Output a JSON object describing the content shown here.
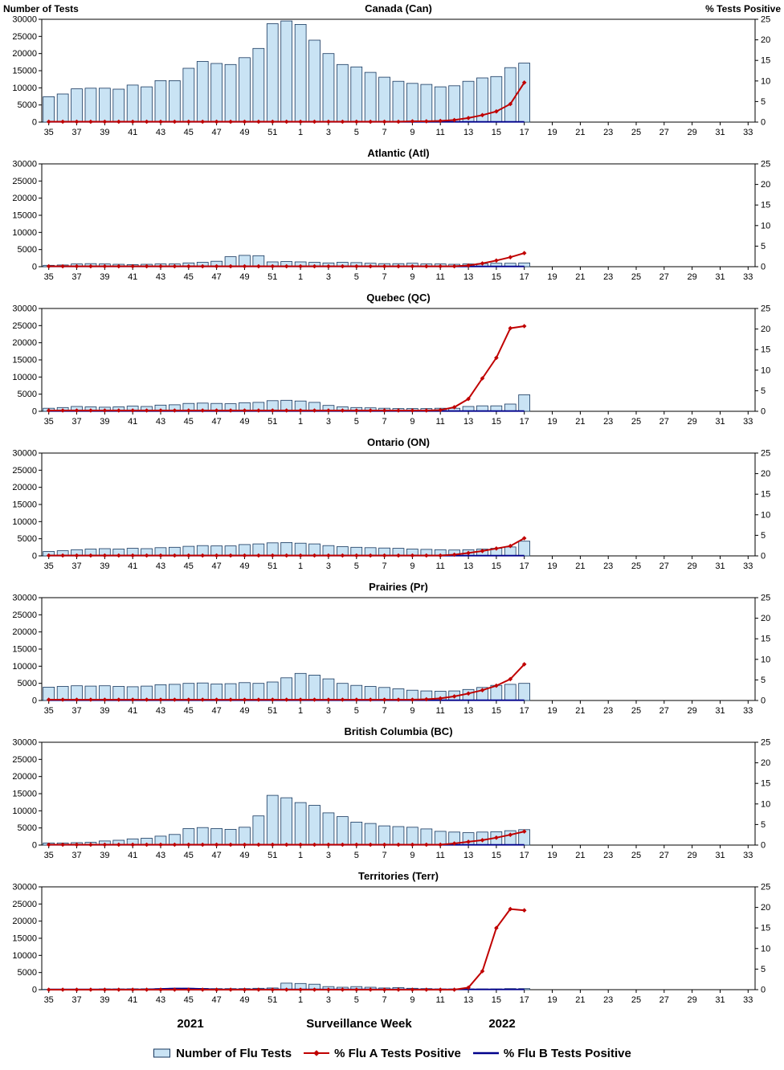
{
  "chart_data": {
    "type": "bar",
    "description": "Weekly influenza test volumes (bars, left axis) with % Flu A and % Flu B tests positive (lines, right axis) for Canada and six regions",
    "weeks": [
      "35",
      "36",
      "37",
      "38",
      "39",
      "40",
      "41",
      "42",
      "43",
      "44",
      "45",
      "46",
      "47",
      "48",
      "49",
      "50",
      "51",
      "52",
      "1",
      "2",
      "3",
      "4",
      "5",
      "6",
      "7",
      "8",
      "9",
      "10",
      "11",
      "12",
      "13",
      "14",
      "15",
      "16",
      "17",
      "18",
      "19",
      "20",
      "21",
      "22",
      "23",
      "24",
      "25",
      "26",
      "27",
      "28",
      "29",
      "30",
      "31",
      "32",
      "33"
    ],
    "left_axis": {
      "label": "Number of Tests",
      "min": 0,
      "max": 30000,
      "ticks": [
        0,
        5000,
        10000,
        15000,
        20000,
        25000,
        30000
      ]
    },
    "right_axis": {
      "label": "% Tests Positive",
      "min": 0,
      "max": 25,
      "ticks": [
        0,
        5,
        10,
        15,
        20,
        25
      ]
    },
    "x_axis": {
      "label": "Surveillance Week",
      "year_left": "2021",
      "year_right": "2022"
    },
    "colors": {
      "bar_fill": "#c9e3f4",
      "bar_stroke": "#17375e",
      "fluA": "#c00000",
      "fluB": "#00008b"
    },
    "legend": [
      {
        "label": "Number of Flu Tests",
        "type": "bar"
      },
      {
        "label": "% Flu A Tests Positive",
        "type": "line-diamond"
      },
      {
        "label": "% Flu B Tests Positive",
        "type": "line"
      }
    ],
    "panels": [
      {
        "name": "Canada (Can)",
        "tests": [
          7400,
          8200,
          9700,
          9900,
          9900,
          9600,
          10800,
          10300,
          12100,
          12100,
          15700,
          17700,
          17100,
          16800,
          18800,
          21500,
          28700,
          29500,
          28500,
          23900,
          20000,
          16800,
          16100,
          14500,
          13100,
          11900,
          11300,
          11000,
          10300,
          10600,
          11900,
          12900,
          13300,
          15900,
          17200
        ],
        "fluA": [
          0.1,
          0.1,
          0.1,
          0.1,
          0.1,
          0.1,
          0.1,
          0.1,
          0.1,
          0.1,
          0.1,
          0.1,
          0.1,
          0.1,
          0.1,
          0.1,
          0.1,
          0.1,
          0.1,
          0.1,
          0.1,
          0.1,
          0.1,
          0.1,
          0.1,
          0.1,
          0.2,
          0.2,
          0.3,
          0.5,
          1.0,
          1.7,
          2.6,
          4.4,
          9.6
        ],
        "fluB": [
          0.05,
          0.05,
          0.05,
          0.05,
          0.05,
          0.05,
          0.05,
          0.05,
          0.05,
          0.05,
          0.05,
          0.05,
          0.05,
          0.05,
          0.05,
          0.05,
          0.05,
          0.05,
          0.05,
          0.05,
          0.05,
          0.05,
          0.05,
          0.05,
          0.05,
          0.05,
          0.05,
          0.05,
          0.05,
          0.05,
          0.05,
          0.05,
          0.05,
          0.05,
          0.05
        ]
      },
      {
        "name": "Atlantic (Atl)",
        "tests": [
          400,
          500,
          800,
          900,
          800,
          700,
          600,
          700,
          800,
          800,
          1100,
          1300,
          1600,
          2900,
          3300,
          3200,
          1400,
          1500,
          1400,
          1300,
          1100,
          1300,
          1200,
          1000,
          900,
          900,
          1000,
          800,
          800,
          700,
          800,
          900,
          1000,
          1000,
          1100
        ],
        "fluA": [
          0.1,
          0.1,
          0.1,
          0.1,
          0.1,
          0.1,
          0.1,
          0.1,
          0.1,
          0.1,
          0.1,
          0.1,
          0.1,
          0.1,
          0.1,
          0.1,
          0.1,
          0.1,
          0.1,
          0.1,
          0.1,
          0.1,
          0.1,
          0.1,
          0.1,
          0.1,
          0.1,
          0.1,
          0.1,
          0.1,
          0.3,
          0.8,
          1.5,
          2.3,
          3.3
        ],
        "fluB": [
          0.05,
          0.05,
          0.05,
          0.05,
          0.05,
          0.05,
          0.05,
          0.05,
          0.05,
          0.05,
          0.05,
          0.05,
          0.05,
          0.05,
          0.05,
          0.05,
          0.05,
          0.05,
          0.05,
          0.05,
          0.05,
          0.05,
          0.05,
          0.05,
          0.05,
          0.05,
          0.05,
          0.05,
          0.05,
          0.05,
          0.05,
          0.05,
          0.05,
          0.05,
          0.05
        ]
      },
      {
        "name": "Quebec (QC)",
        "tests": [
          900,
          1100,
          1400,
          1300,
          1200,
          1300,
          1500,
          1400,
          1800,
          1900,
          2300,
          2400,
          2300,
          2200,
          2500,
          2600,
          3100,
          3200,
          3000,
          2600,
          1700,
          1300,
          1100,
          1000,
          900,
          800,
          800,
          800,
          900,
          900,
          1400,
          1600,
          1600,
          2100,
          4800
        ],
        "fluA": [
          0.2,
          0.2,
          0.2,
          0.2,
          0.2,
          0.2,
          0.2,
          0.2,
          0.2,
          0.2,
          0.2,
          0.2,
          0.2,
          0.2,
          0.2,
          0.2,
          0.2,
          0.2,
          0.2,
          0.2,
          0.2,
          0.2,
          0.2,
          0.2,
          0.2,
          0.2,
          0.2,
          0.2,
          0.3,
          1.0,
          3.0,
          8.0,
          13.0,
          20.2,
          20.7
        ],
        "fluB": [
          0.05,
          0.05,
          0.05,
          0.05,
          0.05,
          0.05,
          0.05,
          0.05,
          0.05,
          0.05,
          0.05,
          0.05,
          0.05,
          0.05,
          0.05,
          0.05,
          0.05,
          0.05,
          0.05,
          0.05,
          0.05,
          0.05,
          0.05,
          0.05,
          0.05,
          0.05,
          0.05,
          0.05,
          0.05,
          0.05,
          0.05,
          0.05,
          0.05,
          0.05,
          0.05
        ]
      },
      {
        "name": "Ontario (ON)",
        "tests": [
          1300,
          1500,
          1800,
          2000,
          2100,
          2000,
          2200,
          2100,
          2400,
          2500,
          2800,
          3000,
          2900,
          2900,
          3300,
          3500,
          3800,
          3900,
          3700,
          3500,
          3000,
          2700,
          2500,
          2400,
          2300,
          2200,
          2000,
          1900,
          1800,
          1700,
          1800,
          2000,
          2200,
          2600,
          4300
        ],
        "fluA": [
          0.1,
          0.1,
          0.1,
          0.1,
          0.1,
          0.1,
          0.1,
          0.1,
          0.1,
          0.1,
          0.1,
          0.1,
          0.1,
          0.1,
          0.1,
          0.1,
          0.1,
          0.1,
          0.1,
          0.1,
          0.1,
          0.1,
          0.1,
          0.1,
          0.1,
          0.1,
          0.1,
          0.1,
          0.1,
          0.3,
          0.7,
          1.2,
          1.8,
          2.4,
          4.3
        ],
        "fluB": [
          0.05,
          0.05,
          0.05,
          0.05,
          0.05,
          0.05,
          0.05,
          0.05,
          0.05,
          0.05,
          0.05,
          0.05,
          0.05,
          0.05,
          0.05,
          0.05,
          0.05,
          0.05,
          0.05,
          0.05,
          0.05,
          0.05,
          0.05,
          0.05,
          0.05,
          0.05,
          0.05,
          0.05,
          0.05,
          0.05,
          0.05,
          0.05,
          0.05,
          0.05,
          0.05
        ]
      },
      {
        "name": "Prairies (Pr)",
        "tests": [
          3900,
          4100,
          4300,
          4200,
          4300,
          4100,
          4000,
          4200,
          4600,
          4700,
          5000,
          5100,
          4800,
          4900,
          5200,
          5000,
          5400,
          6600,
          7900,
          7400,
          6300,
          5000,
          4400,
          4100,
          3800,
          3400,
          3000,
          2800,
          2700,
          2800,
          3200,
          3800,
          4400,
          4700,
          5000
        ],
        "fluA": [
          0.2,
          0.2,
          0.2,
          0.2,
          0.2,
          0.2,
          0.2,
          0.2,
          0.2,
          0.2,
          0.2,
          0.2,
          0.2,
          0.2,
          0.2,
          0.2,
          0.2,
          0.2,
          0.2,
          0.2,
          0.2,
          0.2,
          0.2,
          0.2,
          0.2,
          0.2,
          0.2,
          0.3,
          0.5,
          1.0,
          1.7,
          2.5,
          3.6,
          5.2,
          8.8
        ],
        "fluB": [
          0.05,
          0.05,
          0.05,
          0.05,
          0.05,
          0.05,
          0.05,
          0.05,
          0.05,
          0.05,
          0.05,
          0.05,
          0.05,
          0.05,
          0.05,
          0.05,
          0.05,
          0.05,
          0.05,
          0.05,
          0.05,
          0.05,
          0.05,
          0.05,
          0.05,
          0.05,
          0.05,
          0.05,
          0.05,
          0.05,
          0.05,
          0.05,
          0.05,
          0.05,
          0.05
        ]
      },
      {
        "name": "British Columbia (BC)",
        "tests": [
          600,
          600,
          700,
          800,
          1200,
          1400,
          1800,
          2000,
          2600,
          3100,
          4800,
          5100,
          4800,
          4600,
          5200,
          8500,
          14500,
          13800,
          12400,
          11600,
          9400,
          8300,
          6700,
          6300,
          5600,
          5400,
          5200,
          4700,
          4000,
          3800,
          3600,
          3800,
          3900,
          4200,
          4500
        ],
        "fluA": [
          0.1,
          0.1,
          0.1,
          0.1,
          0.1,
          0.1,
          0.1,
          0.1,
          0.1,
          0.1,
          0.1,
          0.1,
          0.1,
          0.1,
          0.1,
          0.1,
          0.1,
          0.1,
          0.1,
          0.1,
          0.1,
          0.1,
          0.1,
          0.1,
          0.1,
          0.1,
          0.1,
          0.1,
          0.1,
          0.4,
          0.8,
          1.2,
          1.8,
          2.5,
          3.3
        ],
        "fluB": [
          0.05,
          0.05,
          0.05,
          0.05,
          0.05,
          0.05,
          0.05,
          0.05,
          0.05,
          0.05,
          0.05,
          0.05,
          0.05,
          0.05,
          0.05,
          0.05,
          0.05,
          0.05,
          0.05,
          0.05,
          0.05,
          0.05,
          0.05,
          0.05,
          0.05,
          0.05,
          0.05,
          0.05,
          0.05,
          0.05,
          0.05,
          0.05,
          0.05,
          0.05,
          0.05
        ]
      },
      {
        "name": "Territories (Terr)",
        "tests": [
          100,
          100,
          150,
          150,
          200,
          200,
          250,
          250,
          300,
          400,
          400,
          350,
          300,
          300,
          300,
          400,
          500,
          1900,
          1800,
          1600,
          900,
          700,
          900,
          700,
          500,
          600,
          400,
          300,
          200,
          200,
          200,
          200,
          200,
          300,
          300
        ],
        "fluA": [
          0,
          0,
          0,
          0,
          0,
          0,
          0,
          0,
          0,
          0,
          0,
          0,
          0,
          0,
          0,
          0,
          0,
          0,
          0,
          0,
          0,
          0,
          0,
          0,
          0,
          0,
          0,
          0,
          0,
          0,
          0.5,
          4.5,
          15.0,
          19.6,
          19.3
        ],
        "fluB": [
          0.05,
          0.05,
          0.05,
          0.05,
          0.05,
          0.05,
          0.05,
          0.05,
          0.2,
          0.3,
          0.3,
          0.2,
          0.05,
          0.05,
          0.05,
          0.05,
          0.05,
          0.05,
          0.05,
          0.05,
          0.05,
          0.05,
          0.05,
          0.05,
          0.05,
          0.05,
          0.05,
          0.05,
          0.05,
          0.05,
          0.05,
          0.05,
          0.05,
          0.05,
          0.05
        ]
      }
    ]
  }
}
